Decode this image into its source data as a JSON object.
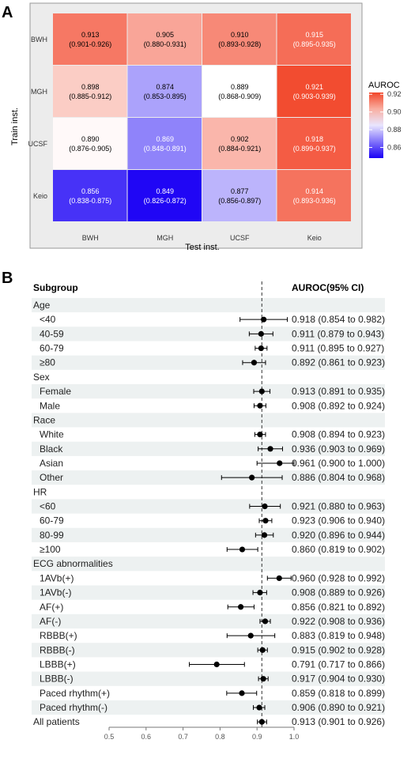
{
  "chart_data": [
    {
      "type": "heatmap",
      "panel_label": "A",
      "xlabel": "Test inst.",
      "ylabel": "Train inst.",
      "x_categories": [
        "BWH",
        "MGH",
        "UCSF",
        "Keio"
      ],
      "y_categories": [
        "BWH",
        "MGH",
        "UCSF",
        "Keio"
      ],
      "values": [
        [
          0.913,
          0.905,
          0.91,
          0.915
        ],
        [
          0.898,
          0.874,
          0.889,
          0.921
        ],
        [
          0.89,
          0.869,
          0.902,
          0.918
        ],
        [
          0.856,
          0.849,
          0.877,
          0.914
        ]
      ],
      "ci_text": [
        [
          "(0.901-0.926)",
          "(0.880-0.931)",
          "(0.893-0.928)",
          "(0.895-0.935)"
        ],
        [
          "(0.885-0.912)",
          "(0.853-0.895)",
          "(0.868-0.909)",
          "(0.903-0.939)"
        ],
        [
          "(0.876-0.905)",
          "(0.848-0.891)",
          "(0.884-0.921)",
          "(0.899-0.937)"
        ],
        [
          "(0.838-0.875)",
          "(0.826-0.872)",
          "(0.856-0.897)",
          "(0.893-0.936)"
        ]
      ],
      "legend": {
        "title": "AUROC",
        "ticks": [
          "0.92",
          "0.90",
          "0.88",
          "0.86"
        ],
        "range": [
          0.848,
          0.922
        ]
      },
      "colors": {
        "low": "#1a00f5",
        "mid": "#ffffff",
        "high": "#f2462a",
        "mid_value": 0.889
      }
    },
    {
      "type": "forest",
      "panel_label": "B",
      "column_headers": {
        "subgroup": "Subgroup",
        "auroc": "AUROC(95% CI)"
      },
      "xlim": [
        0.5,
        1.0
      ],
      "x_ticks": [
        "0.5",
        "0.6",
        "0.7",
        "0.8",
        "0.9",
        "1.0"
      ],
      "reference_line": 0.913,
      "rows": [
        {
          "label": "Age",
          "header": true
        },
        {
          "label": "<40",
          "est": 0.918,
          "lo": 0.854,
          "hi": 0.982,
          "text": "0.918 (0.854 to 0.982)"
        },
        {
          "label": "40-59",
          "est": 0.911,
          "lo": 0.879,
          "hi": 0.943,
          "text": "0.911 (0.879 to 0.943)"
        },
        {
          "label": "60-79",
          "est": 0.911,
          "lo": 0.895,
          "hi": 0.927,
          "text": "0.911 (0.895 to 0.927)"
        },
        {
          "label": "≥80",
          "est": 0.892,
          "lo": 0.861,
          "hi": 0.923,
          "text": "0.892 (0.861 to 0.923)"
        },
        {
          "label": "Sex",
          "header": true
        },
        {
          "label": "Female",
          "est": 0.913,
          "lo": 0.891,
          "hi": 0.935,
          "text": "0.913 (0.891 to 0.935)"
        },
        {
          "label": "Male",
          "est": 0.908,
          "lo": 0.892,
          "hi": 0.924,
          "text": "0.908 (0.892 to 0.924)"
        },
        {
          "label": "Race",
          "header": true
        },
        {
          "label": "White",
          "est": 0.908,
          "lo": 0.894,
          "hi": 0.923,
          "text": "0.908 (0.894 to 0.923)"
        },
        {
          "label": "Black",
          "est": 0.936,
          "lo": 0.903,
          "hi": 0.969,
          "text": "0.936 (0.903 to 0.969)"
        },
        {
          "label": "Asian",
          "est": 0.961,
          "lo": 0.9,
          "hi": 1.0,
          "text": "0.961 (0.900 to 1.000)"
        },
        {
          "label": "Other",
          "est": 0.886,
          "lo": 0.804,
          "hi": 0.968,
          "text": "0.886 (0.804 to 0.968)"
        },
        {
          "label": "HR",
          "header": true
        },
        {
          "label": "<60",
          "est": 0.921,
          "lo": 0.88,
          "hi": 0.963,
          "text": "0.921 (0.880 to 0.963)"
        },
        {
          "label": "60-79",
          "est": 0.923,
          "lo": 0.906,
          "hi": 0.94,
          "text": "0.923 (0.906 to 0.940)"
        },
        {
          "label": "80-99",
          "est": 0.92,
          "lo": 0.896,
          "hi": 0.944,
          "text": "0.920 (0.896 to 0.944)"
        },
        {
          "label": "≥100",
          "est": 0.86,
          "lo": 0.819,
          "hi": 0.902,
          "text": "0.860 (0.819 to 0.902)"
        },
        {
          "label": "ECG abnormalities",
          "header": true
        },
        {
          "label": "1AVb(+)",
          "est": 0.96,
          "lo": 0.928,
          "hi": 0.992,
          "text": "0.960 (0.928 to 0.992)"
        },
        {
          "label": "1AVb(-)",
          "est": 0.908,
          "lo": 0.889,
          "hi": 0.926,
          "text": "0.908 (0.889 to 0.926)"
        },
        {
          "label": "AF(+)",
          "est": 0.856,
          "lo": 0.821,
          "hi": 0.892,
          "text": "0.856 (0.821 to 0.892)"
        },
        {
          "label": "AF(-)",
          "est": 0.922,
          "lo": 0.908,
          "hi": 0.936,
          "text": "0.922 (0.908 to 0.936)"
        },
        {
          "label": "RBBB(+)",
          "est": 0.883,
          "lo": 0.819,
          "hi": 0.948,
          "text": "0.883 (0.819 to 0.948)"
        },
        {
          "label": "RBBB(-)",
          "est": 0.915,
          "lo": 0.902,
          "hi": 0.928,
          "text": "0.915 (0.902 to 0.928)"
        },
        {
          "label": "LBBB(+)",
          "est": 0.791,
          "lo": 0.717,
          "hi": 0.866,
          "text": "0.791 (0.717 to 0.866)"
        },
        {
          "label": "LBBB(-)",
          "est": 0.917,
          "lo": 0.904,
          "hi": 0.93,
          "text": "0.917 (0.904 to 0.930)"
        },
        {
          "label": "Paced rhythm(+)",
          "est": 0.859,
          "lo": 0.818,
          "hi": 0.899,
          "text": "0.859 (0.818 to 0.899)"
        },
        {
          "label": "Paced rhythm(-)",
          "est": 0.906,
          "lo": 0.89,
          "hi": 0.921,
          "text": "0.906 (0.890 to 0.921)"
        },
        {
          "label": "All patients",
          "est": 0.913,
          "lo": 0.901,
          "hi": 0.926,
          "text": "0.913 (0.901 to 0.926)",
          "top_level": true
        }
      ]
    }
  ]
}
